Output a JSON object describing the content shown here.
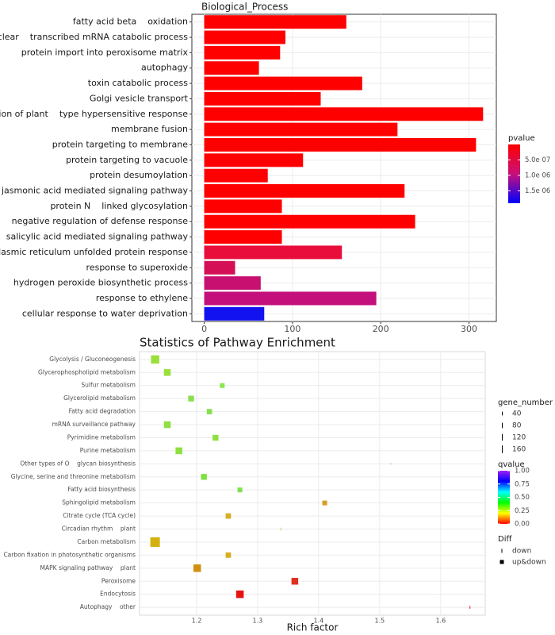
{
  "chart_data": [
    {
      "type": "bar",
      "orientation": "horizontal",
      "title": "Biological_Process",
      "categories": [
        "fatty acid beta    oxidation",
        "nuclear    transcribed mRNA catabolic process",
        "protein import into peroxisome matrix",
        "autophagy",
        "toxin catabolic process",
        "Golgi vesicle transport",
        "regulation of plant    type hypersensitive response",
        "membrane fusion",
        "protein targeting to membrane",
        "protein targeting to vacuole",
        "protein desumoylation",
        "jasmonic acid mediated signaling pathway",
        "protein N    linked glycosylation",
        "negative regulation of defense response",
        "salicylic acid mediated signaling pathway",
        "endoplasmic reticulum unfolded protein response",
        "response to superoxide",
        "hydrogen peroxide biosynthetic process",
        "response to ethylene",
        "cellular response to water deprivation"
      ],
      "values": [
        161,
        92,
        86,
        62,
        179,
        132,
        316,
        219,
        308,
        112,
        72,
        227,
        88,
        239,
        88,
        156,
        35,
        64,
        195,
        68
      ],
      "colors": [
        "#ff0000",
        "#ff0000",
        "#ff0000",
        "#ff0000",
        "#ff0000",
        "#ff0000",
        "#ff0000",
        "#ff0000",
        "#ff0000",
        "#ff0000",
        "#ff0000",
        "#ff0000",
        "#ff0000",
        "#ff0000",
        "#ff0000",
        "#e80d3a",
        "#d40f55",
        "#c81070",
        "#c4107a",
        "#1212f0"
      ],
      "xlim": [
        -14,
        331
      ],
      "xticks": [
        0,
        100,
        200,
        300
      ],
      "grid": true,
      "color_legend": {
        "title": "pvalue",
        "lim": [
          0,
          1.9e-06
        ],
        "ticks": [
          {
            "value": 5e-07,
            "label": "5.0e 07"
          },
          {
            "value": 1e-06,
            "label": "1.0e 06"
          },
          {
            "value": 1.5e-06,
            "label": "1.5e 06"
          }
        ],
        "colors": [
          "#ff0000",
          "#c8107a",
          "#0000ff"
        ]
      }
    },
    {
      "type": "scatter",
      "title": "Statistics of Pathway Enrichment",
      "x_label": "Rich factor",
      "categories": [
        "Glycolysis / Gluconeogenesis",
        "Glycerophospholipid metabolism",
        "Sulfur metabolism",
        "Glycerolipid metabolism",
        "Fatty acid degradation",
        "mRNA surveillance pathway",
        "Pyrimidine metabolism",
        "Purine metabolism",
        "Other types of O    glycan biosynthesis",
        "Glycine, serine and threonine metabolism",
        "Fatty acid biosynthesis",
        "Sphingolipid metabolism",
        "Citrate cycle (TCA cycle)",
        "Circadian rhythm    plant",
        "Carbon metabolism",
        "Carbon fixation in photosynthetic organisms",
        "MAPK signaling pathway    plant",
        "Peroxisome",
        "Endocytosis",
        "Autophagy    other"
      ],
      "x": [
        1.132,
        1.152,
        1.242,
        1.191,
        1.221,
        1.152,
        1.231,
        1.171,
        1.518,
        1.212,
        1.271,
        1.41,
        1.252,
        1.338,
        1.132,
        1.252,
        1.201,
        1.361,
        1.271,
        1.648
      ],
      "sizes": [
        120,
        80,
        40,
        60,
        50,
        80,
        60,
        80,
        5,
        60,
        40,
        40,
        50,
        15,
        160,
        50,
        100,
        80,
        100,
        15
      ],
      "diff": [
        "up&down",
        "up&down",
        "up&down",
        "up&down",
        "up&down",
        "up&down",
        "up&down",
        "up&down",
        "down",
        "up&down",
        "up&down",
        "up&down",
        "up&down",
        "down",
        "up&down",
        "up&down",
        "up&down",
        "up&down",
        "up&down",
        "down"
      ],
      "colors": [
        "#9be03a",
        "#9be03a",
        "#88e84a",
        "#88e050",
        "#88e050",
        "#8fe040",
        "#8de040",
        "#8de040",
        "#c0c0a0",
        "#80e040",
        "#80e050",
        "#d4a020",
        "#d4b020",
        "#c8d080",
        "#d4b010",
        "#d4b020",
        "#d09010",
        "#e03020",
        "#e81010",
        "#e82020"
      ],
      "xlim": [
        1.1065,
        1.673
      ],
      "xticks": [
        1.2,
        1.3,
        1.4,
        1.5,
        1.6
      ],
      "grid": true,
      "size_legend": {
        "title": "gene_number",
        "values": [
          40,
          80,
          120,
          160
        ]
      },
      "color_legend": {
        "title": "qvalue",
        "lim": [
          0,
          1
        ],
        "ticks": [
          {
            "value": 1,
            "label": "1.00"
          },
          0.75,
          {
            "value": 0.5,
            "label": "0.50"
          },
          0.25,
          {
            "value": 0,
            "label": "0.00"
          }
        ],
        "colors": [
          "#ff0000",
          "#ffff00",
          "#00ff00",
          "#00ffff",
          "#0000ff",
          "#a020f0"
        ]
      },
      "shape_legend": {
        "title": "Diff",
        "labels": [
          "down",
          "up&down"
        ]
      }
    }
  ]
}
